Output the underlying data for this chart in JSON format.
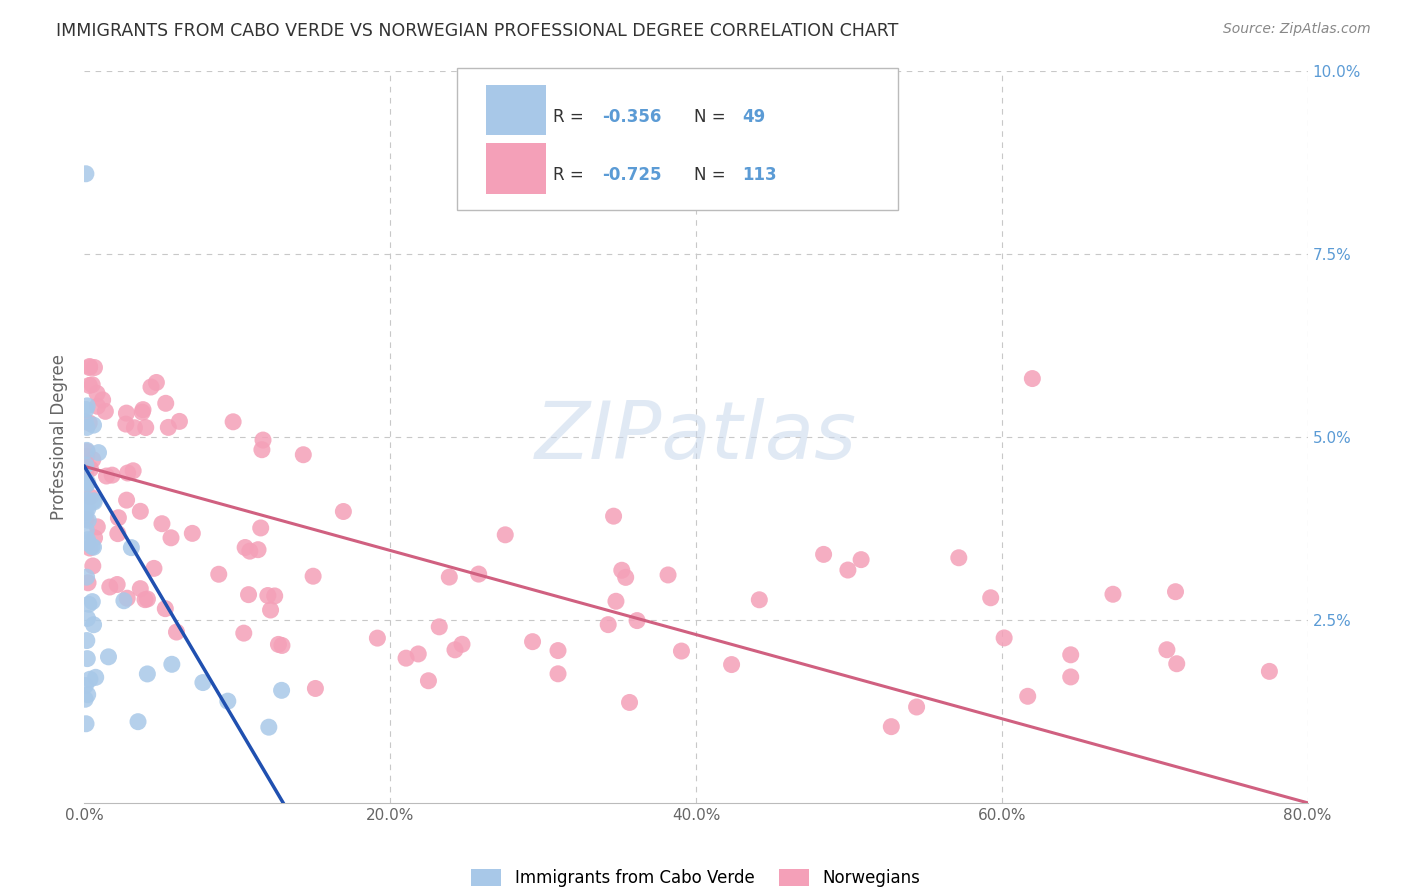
{
  "title": "IMMIGRANTS FROM CABO VERDE VS NORWEGIAN PROFESSIONAL DEGREE CORRELATION CHART",
  "source": "Source: ZipAtlas.com",
  "ylabel": "Professional Degree",
  "xlim": [
    0,
    0.8
  ],
  "ylim": [
    0,
    0.1
  ],
  "xtick_vals": [
    0.0,
    0.2,
    0.4,
    0.6,
    0.8
  ],
  "xtick_labels": [
    "0.0%",
    "20.0%",
    "40.0%",
    "60.0%",
    "80.0%"
  ],
  "ytick_vals": [
    0.0,
    0.025,
    0.05,
    0.075,
    0.1
  ],
  "ytick_labels_right": [
    "",
    "2.5%",
    "5.0%",
    "7.5%",
    "10.0%"
  ],
  "blue_R": -0.356,
  "blue_N": 49,
  "pink_R": -0.725,
  "pink_N": 113,
  "blue_scatter_color": "#a8c8e8",
  "pink_scatter_color": "#f4a0b8",
  "blue_line_color": "#2050b0",
  "pink_line_color": "#d06080",
  "legend_label_blue": "Immigrants from Cabo Verde",
  "legend_label_pink": "Norwegians",
  "watermark": "ZIPatlas",
  "background_color": "#ffffff",
  "grid_color": "#c8c8c8",
  "title_color": "#333333",
  "source_color": "#888888",
  "tick_color": "#5b9bd5",
  "ylabel_color": "#666666",
  "blue_line_x_end": 0.13,
  "blue_line_y_start": 0.046,
  "blue_line_y_end": 0.0,
  "pink_line_x_end": 0.8,
  "pink_line_y_start": 0.046,
  "pink_line_y_end": 0.0
}
